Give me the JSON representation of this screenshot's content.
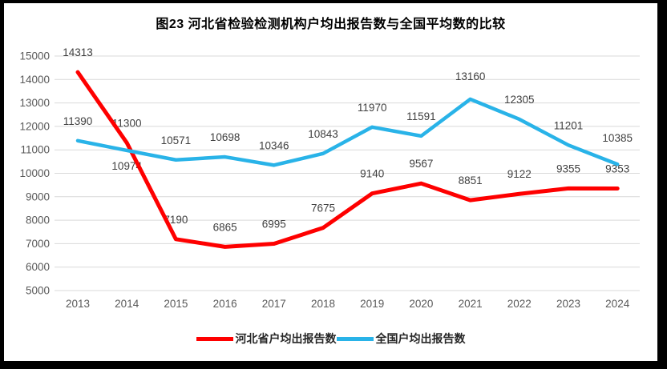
{
  "title": "图23  河北省检验检测机构户均出报告数与全国平均数的比较",
  "chart_data": {
    "type": "line",
    "x": [
      "2013",
      "2014",
      "2015",
      "2016",
      "2017",
      "2018",
      "2019",
      "2020",
      "2021",
      "2022",
      "2023",
      "2024"
    ],
    "series": [
      {
        "name": "河北省户均出报告数",
        "color": "#FE0000",
        "values": [
          14313,
          11300,
          7190,
          6865,
          6995,
          7675,
          9140,
          9567,
          8851,
          9122,
          9355,
          9353
        ],
        "label_dy": {}
      },
      {
        "name": "全国户均出报告数",
        "color": "#29B3E8",
        "values": [
          11390,
          10974,
          10571,
          10698,
          10346,
          10843,
          11970,
          11591,
          13160,
          12305,
          11201,
          10385
        ],
        "label_dy": {
          "1": 44,
          "8": -4,
          "11": -8
        }
      }
    ],
    "ylim": [
      5000,
      15000
    ],
    "ytick_step": 1000,
    "yticks": [
      5000,
      6000,
      7000,
      8000,
      9000,
      10000,
      11000,
      12000,
      13000,
      14000,
      15000
    ],
    "grid": true,
    "legend_position": "bottom",
    "colors": {
      "grid": "#D9D9D9",
      "tick_label": "#595959",
      "data_label": "#404040",
      "frame": "#000000",
      "background": "#FFFFFF"
    }
  }
}
